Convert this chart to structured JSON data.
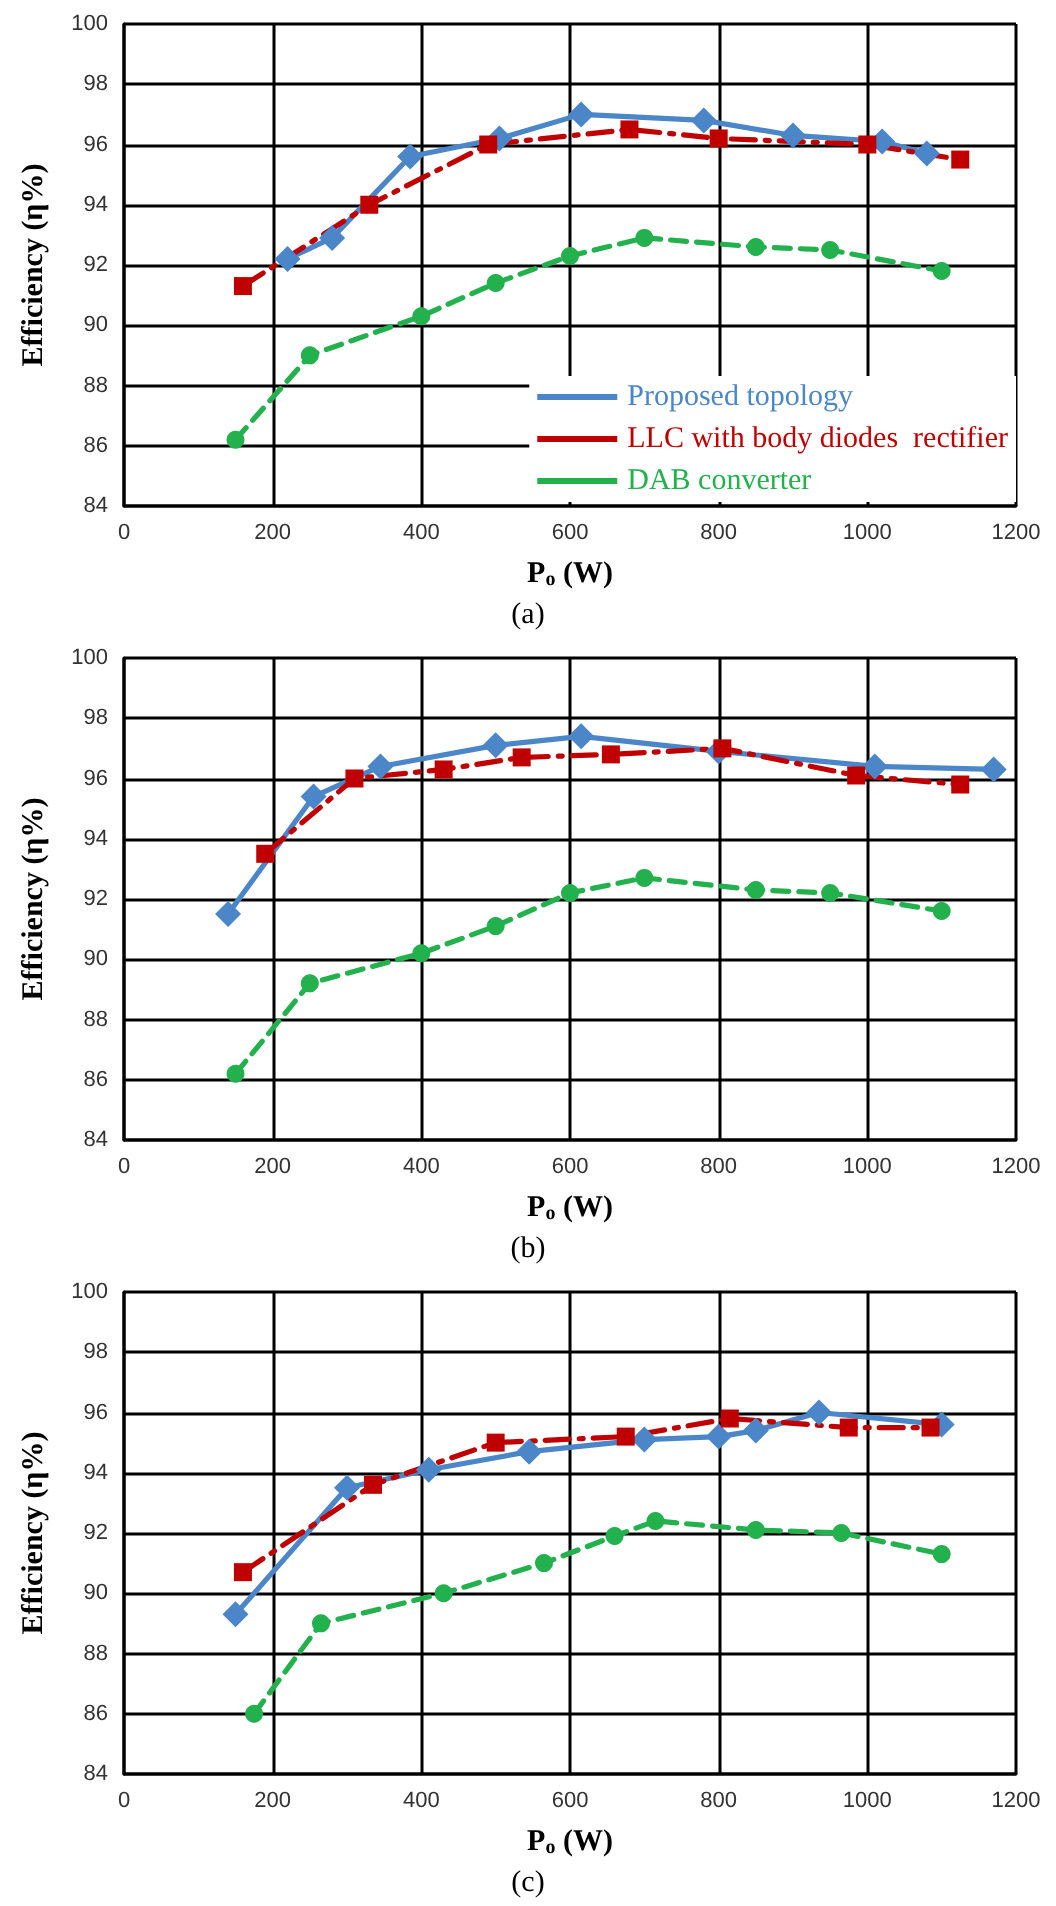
{
  "chart_data": [
    {
      "type": "line",
      "xlabel": "P$_{o}$ (W)",
      "ylabel": "Efficiency (η%)",
      "annotations": [
        "(a)"
      ],
      "xlim": [
        0,
        1200
      ],
      "xticks": [
        0,
        200,
        400,
        600,
        800,
        1000,
        1200
      ],
      "ylim": [
        84,
        100
      ],
      "yticks": [
        84,
        86,
        88,
        90,
        92,
        94,
        96,
        98,
        100
      ],
      "grid": true,
      "legend": "bottom right",
      "series": [
        {
          "name": "Proposed topology",
          "color": "#4a86c8",
          "marker": "diamond",
          "line_style": "solid",
          "x": [
            220,
            280,
            385,
            505,
            615,
            780,
            900,
            1020,
            1080
          ],
          "values": [
            92.2,
            92.9,
            95.6,
            96.2,
            97.0,
            96.8,
            96.3,
            96.1,
            95.7
          ]
        },
        {
          "name": "LLC with body diodes  rectifier",
          "color": "#c00000",
          "marker": "square",
          "line_style": "dashdot",
          "x": [
            160,
            330,
            490,
            680,
            800,
            1000,
            1125
          ],
          "values": [
            91.3,
            94.0,
            96.0,
            96.5,
            96.2,
            96.0,
            95.5
          ]
        },
        {
          "name": "DAB converter",
          "color": "#22b14c",
          "marker": "circle",
          "line_style": "dashed",
          "x": [
            150,
            250,
            400,
            500,
            600,
            700,
            850,
            950,
            1100
          ],
          "values": [
            86.2,
            89.0,
            90.3,
            91.4,
            92.3,
            92.9,
            92.6,
            92.5,
            91.8
          ]
        }
      ]
    },
    {
      "type": "line",
      "xlabel": "P$_{o}$ (W)",
      "ylabel": "Efficiency (η%)",
      "annotations": [
        "(b)"
      ],
      "xlim": [
        0,
        1200
      ],
      "xticks": [
        0,
        200,
        400,
        600,
        800,
        1000,
        1200
      ],
      "ylim": [
        84,
        100
      ],
      "yticks": [
        84,
        86,
        88,
        90,
        92,
        94,
        96,
        98,
        100
      ],
      "grid": true,
      "series": [
        {
          "color": "#4a86c8",
          "marker": "diamond",
          "line_style": "solid",
          "x": [
            140,
            255,
            345,
            500,
            615,
            800,
            1010,
            1170
          ],
          "values": [
            91.5,
            95.4,
            96.4,
            97.1,
            97.4,
            96.9,
            96.4,
            96.3
          ]
        },
        {
          "color": "#c00000",
          "marker": "square",
          "line_style": "dashdot",
          "x": [
            190,
            310,
            430,
            535,
            655,
            805,
            985,
            1125
          ],
          "values": [
            93.5,
            96.0,
            96.3,
            96.7,
            96.8,
            97.0,
            96.1,
            95.8
          ]
        },
        {
          "color": "#22b14c",
          "marker": "circle",
          "line_style": "dashed",
          "x": [
            150,
            250,
            400,
            500,
            600,
            700,
            850,
            950,
            1100
          ],
          "values": [
            86.2,
            89.2,
            90.2,
            91.1,
            92.2,
            92.7,
            92.3,
            92.2,
            91.6
          ]
        }
      ]
    },
    {
      "type": "line",
      "xlabel": "P$_{o}$ (W)",
      "ylabel": "Efficiency (η%)",
      "annotations": [
        "(c)"
      ],
      "xlim": [
        0,
        1200
      ],
      "xticks": [
        0,
        200,
        400,
        600,
        800,
        1000,
        1200
      ],
      "ylim": [
        84,
        100
      ],
      "yticks": [
        84,
        86,
        88,
        90,
        92,
        94,
        96,
        98,
        100
      ],
      "grid": true,
      "series": [
        {
          "color": "#4a86c8",
          "marker": "diamond",
          "line_style": "solid",
          "x": [
            150,
            300,
            410,
            545,
            700,
            800,
            850,
            935,
            1100
          ],
          "values": [
            89.3,
            93.5,
            94.1,
            94.7,
            95.1,
            95.2,
            95.4,
            96.0,
            95.6
          ]
        },
        {
          "color": "#c00000",
          "marker": "square",
          "line_style": "dashdot",
          "x": [
            160,
            335,
            500,
            675,
            815,
            975,
            1085
          ],
          "values": [
            90.7,
            93.6,
            95.0,
            95.2,
            95.8,
            95.5,
            95.5
          ]
        },
        {
          "color": "#22b14c",
          "marker": "circle",
          "line_style": "dashed",
          "x": [
            175,
            265,
            430,
            565,
            660,
            715,
            850,
            965,
            1100
          ],
          "values": [
            86.0,
            89.0,
            90.0,
            91.0,
            91.9,
            92.4,
            92.1,
            92.0,
            91.3
          ]
        }
      ]
    }
  ]
}
